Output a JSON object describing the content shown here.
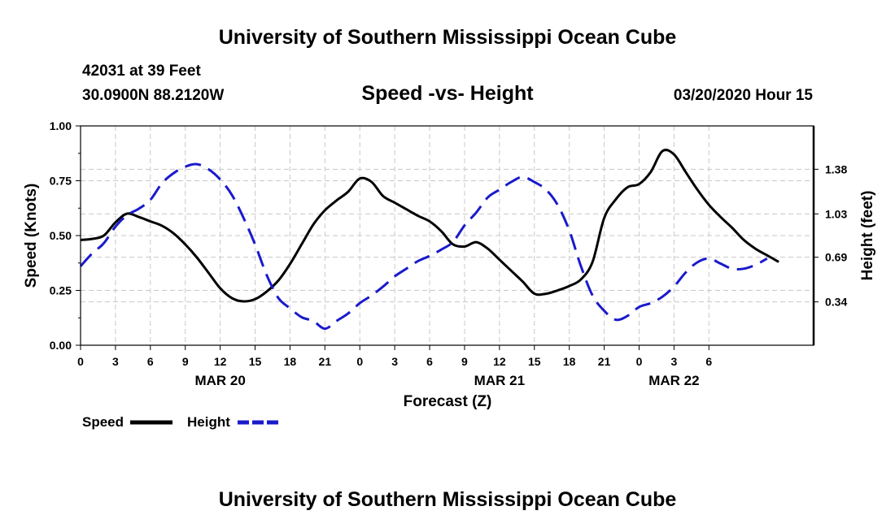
{
  "header": {
    "title": "University of Southern Mississippi Ocean Cube",
    "station": "42031 at 39 Feet",
    "coords": "30.0900N 88.2120W",
    "datetime": "03/20/2020 Hour 15"
  },
  "footer": {
    "title": "University of Southern Mississippi Ocean Cube"
  },
  "chart_data": {
    "type": "line",
    "title": "Speed -vs- Height",
    "xlabel": "Forecast (Z)",
    "ylabel": "Speed (Knots)",
    "y2label": "Height (feet)",
    "x_range_hours": [
      0,
      63
    ],
    "ylim": [
      0,
      1.0
    ],
    "y2lim": [
      0,
      1.72
    ],
    "grid": true,
    "x_ticks": [
      {
        "h": 0,
        "label": "0"
      },
      {
        "h": 3,
        "label": "3"
      },
      {
        "h": 6,
        "label": "6"
      },
      {
        "h": 9,
        "label": "9"
      },
      {
        "h": 12,
        "label": "12"
      },
      {
        "h": 15,
        "label": "15"
      },
      {
        "h": 18,
        "label": "18"
      },
      {
        "h": 21,
        "label": "21"
      },
      {
        "h": 24,
        "label": "0"
      },
      {
        "h": 27,
        "label": "3"
      },
      {
        "h": 30,
        "label": "6"
      },
      {
        "h": 33,
        "label": "9"
      },
      {
        "h": 36,
        "label": "12"
      },
      {
        "h": 39,
        "label": "15"
      },
      {
        "h": 42,
        "label": "18"
      },
      {
        "h": 45,
        "label": "21"
      },
      {
        "h": 48,
        "label": "0"
      },
      {
        "h": 51,
        "label": "3"
      },
      {
        "h": 54,
        "label": "6"
      }
    ],
    "date_labels": [
      {
        "h": 12,
        "label": "MAR 20"
      },
      {
        "h": 36,
        "label": "MAR 21"
      },
      {
        "h": 51,
        "label": "MAR 22"
      }
    ],
    "y_ticks": [
      {
        "v": 0.0,
        "label": "0.00"
      },
      {
        "v": 0.25,
        "label": "0.25"
      },
      {
        "v": 0.5,
        "label": "0.50"
      },
      {
        "v": 0.75,
        "label": "0.75"
      },
      {
        "v": 1.0,
        "label": "1.00"
      }
    ],
    "y2_ticks": [
      {
        "v": 0.34,
        "label": "0.34"
      },
      {
        "v": 0.69,
        "label": "0.69"
      },
      {
        "v": 1.03,
        "label": "1.03"
      },
      {
        "v": 1.38,
        "label": "1.38"
      }
    ],
    "series": [
      {
        "name": "Speed",
        "axis": "left",
        "color": "#000000",
        "dash": "solid",
        "points": [
          [
            0,
            0.48
          ],
          [
            1,
            0.485
          ],
          [
            2,
            0.5
          ],
          [
            3,
            0.56
          ],
          [
            4,
            0.6
          ],
          [
            5,
            0.585
          ],
          [
            6,
            0.565
          ],
          [
            7,
            0.545
          ],
          [
            8,
            0.51
          ],
          [
            9,
            0.46
          ],
          [
            10,
            0.4
          ],
          [
            11,
            0.33
          ],
          [
            12,
            0.26
          ],
          [
            13,
            0.215
          ],
          [
            14,
            0.2
          ],
          [
            15,
            0.21
          ],
          [
            16,
            0.245
          ],
          [
            17,
            0.295
          ],
          [
            18,
            0.37
          ],
          [
            19,
            0.46
          ],
          [
            20,
            0.55
          ],
          [
            21,
            0.615
          ],
          [
            22,
            0.66
          ],
          [
            23,
            0.7
          ],
          [
            24,
            0.76
          ],
          [
            25,
            0.745
          ],
          [
            26,
            0.68
          ],
          [
            27,
            0.65
          ],
          [
            28,
            0.62
          ],
          [
            29,
            0.59
          ],
          [
            30,
            0.565
          ],
          [
            31,
            0.52
          ],
          [
            32,
            0.46
          ],
          [
            33,
            0.45
          ],
          [
            34,
            0.47
          ],
          [
            35,
            0.44
          ],
          [
            36,
            0.39
          ],
          [
            37,
            0.34
          ],
          [
            38,
            0.29
          ],
          [
            39,
            0.235
          ],
          [
            40,
            0.235
          ],
          [
            41,
            0.25
          ],
          [
            42,
            0.27
          ],
          [
            43,
            0.3
          ],
          [
            44,
            0.38
          ],
          [
            45,
            0.58
          ],
          [
            46,
            0.665
          ],
          [
            47,
            0.72
          ],
          [
            48,
            0.735
          ],
          [
            49,
            0.79
          ],
          [
            50,
            0.885
          ],
          [
            51,
            0.87
          ],
          [
            52,
            0.79
          ],
          [
            53,
            0.71
          ],
          [
            54,
            0.64
          ],
          [
            55,
            0.585
          ],
          [
            56,
            0.535
          ],
          [
            57,
            0.48
          ],
          [
            58,
            0.44
          ],
          [
            59,
            0.41
          ],
          [
            60,
            0.38
          ]
        ]
      },
      {
        "name": "Height",
        "axis": "right",
        "color": "#1a1acc",
        "dash": "dashed",
        "points": [
          [
            0,
            0.62
          ],
          [
            1,
            0.72
          ],
          [
            2,
            0.8
          ],
          [
            3,
            0.93
          ],
          [
            4,
            1.02
          ],
          [
            5,
            1.07
          ],
          [
            6,
            1.14
          ],
          [
            7,
            1.27
          ],
          [
            8,
            1.35
          ],
          [
            9,
            1.4
          ],
          [
            10,
            1.42
          ],
          [
            11,
            1.38
          ],
          [
            12,
            1.3
          ],
          [
            13,
            1.18
          ],
          [
            14,
            1.0
          ],
          [
            15,
            0.79
          ],
          [
            16,
            0.55
          ],
          [
            17,
            0.37
          ],
          [
            18,
            0.29
          ],
          [
            19,
            0.22
          ],
          [
            20,
            0.19
          ],
          [
            21,
            0.13
          ],
          [
            22,
            0.19
          ],
          [
            23,
            0.25
          ],
          [
            24,
            0.33
          ],
          [
            25,
            0.39
          ],
          [
            26,
            0.46
          ],
          [
            27,
            0.54
          ],
          [
            28,
            0.6
          ],
          [
            29,
            0.66
          ],
          [
            30,
            0.7
          ],
          [
            31,
            0.75
          ],
          [
            32,
            0.81
          ],
          [
            33,
            0.94
          ],
          [
            34,
            1.04
          ],
          [
            35,
            1.16
          ],
          [
            36,
            1.22
          ],
          [
            37,
            1.28
          ],
          [
            38,
            1.32
          ],
          [
            39,
            1.28
          ],
          [
            40,
            1.22
          ],
          [
            41,
            1.1
          ],
          [
            42,
            0.9
          ],
          [
            43,
            0.62
          ],
          [
            44,
            0.39
          ],
          [
            45,
            0.27
          ],
          [
            46,
            0.2
          ],
          [
            47,
            0.23
          ],
          [
            48,
            0.3
          ],
          [
            49,
            0.33
          ],
          [
            50,
            0.38
          ],
          [
            51,
            0.46
          ],
          [
            52,
            0.57
          ],
          [
            53,
            0.65
          ],
          [
            54,
            0.68
          ],
          [
            55,
            0.64
          ],
          [
            56,
            0.6
          ],
          [
            57,
            0.6
          ],
          [
            58,
            0.63
          ],
          [
            59,
            0.68
          ]
        ]
      }
    ],
    "legend": [
      {
        "label": "Speed",
        "color": "#000000",
        "dash": "solid"
      },
      {
        "label": "Height",
        "color": "#1a1acc",
        "dash": "dashed"
      }
    ]
  }
}
